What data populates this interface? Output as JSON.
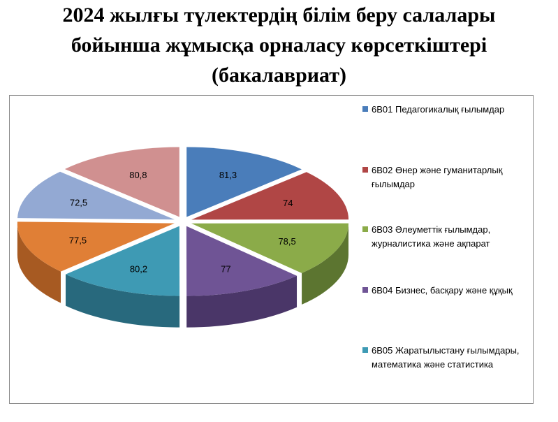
{
  "title": {
    "line1": "2024 жылғы түлектердің білім беру салалары",
    "line2": "бойынша жұмысқа орналасу көрсеткіштері",
    "line3": "(бакалавриат)"
  },
  "chart_data": {
    "type": "pie",
    "title": "2024 жылғы түлектердің білім беру салалары бойынша жұмысқа орналасу көрсеткіштері (бакалавриат)",
    "categories": [
      "6В01 Педагогикалық ғылымдар",
      "6В02  Өнер және гуманитарлық ғылымдар",
      "6В03  Әлеуметтік ғылымдар, журналистика және ақпарат",
      "6В04  Бизнес, басқару және құқық",
      "6В05  Жаратылыстану ғылымдары, математика және статистика",
      "",
      "",
      ""
    ],
    "values": [
      81.3,
      74,
      78.5,
      77,
      80.2,
      77.5,
      72.5,
      80.8
    ],
    "value_labels": [
      "81,3",
      "74",
      "78,5",
      "77",
      "80,2",
      "77,5",
      "72,5",
      "80,8"
    ],
    "colors": [
      "#4A7DBA",
      "#B04645",
      "#8BAB49",
      "#6F5495",
      "#3E9AB4",
      "#E07F36",
      "#93A9D3",
      "#D09090"
    ],
    "dark_colors": [
      "#2E5583",
      "#7A2B2A",
      "#5C7530",
      "#4A3668",
      "#28697D",
      "#A75A22",
      "#667CA6",
      "#9B6363"
    ],
    "legend": {
      "position": "right",
      "visible_entries": [
        {
          "code": "6В01",
          "text": "6В01 Педагогикалық ғылымдар"
        },
        {
          "code": "6В02",
          "text": "6В02  Өнер және гуманитарлық ғылымдар"
        },
        {
          "code": "6В03",
          "text": "6В03  Әлеуметтік ғылымдар, журналистика және ақпарат"
        },
        {
          "code": "6В04",
          "text": "6В04  Бизнес, басқару және құқық"
        },
        {
          "code": "6В05",
          "text": "6В05  Жаратылыстану ғылымдары, математика және статистика"
        }
      ]
    }
  }
}
